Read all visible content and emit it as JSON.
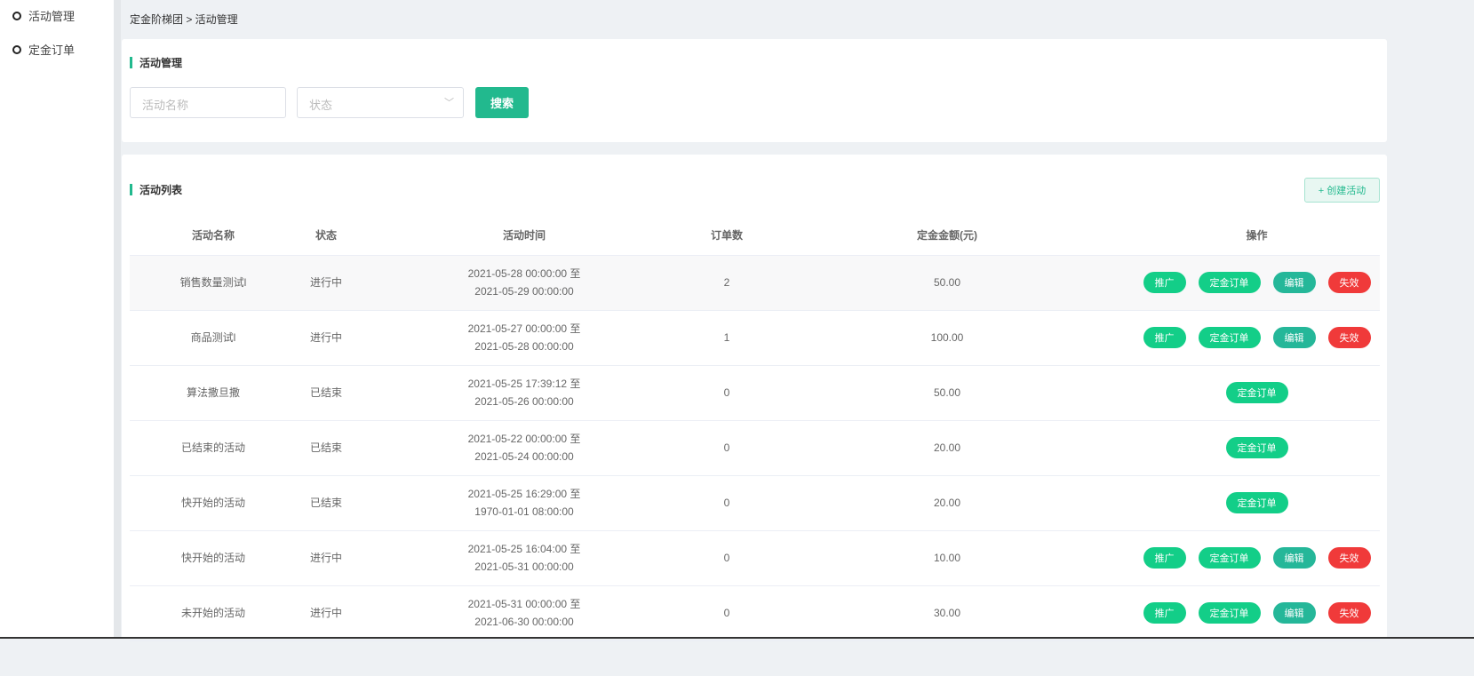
{
  "sidebar": {
    "items": [
      {
        "label": "活动管理"
      },
      {
        "label": "定金订单"
      }
    ]
  },
  "breadcrumb": "定金阶梯团 > 活动管理",
  "search_card": {
    "title": "活动管理",
    "name_placeholder": "活动名称",
    "status_placeholder": "状态",
    "search_label": "搜索"
  },
  "list_card": {
    "title": "活动列表",
    "create_label": "+ 创建活动",
    "columns": [
      "活动名称",
      "状态",
      "活动时间",
      "订单数",
      "定金金额(元)",
      "操作"
    ],
    "actions": {
      "promote": "推广",
      "orders": "定金订单",
      "edit": "编辑",
      "invalidate": "失效"
    },
    "rows": [
      {
        "name": "销售数量测试l",
        "status": "进行中",
        "start": "2021-05-28 00:00:00 至",
        "end": "2021-05-29 00:00:00",
        "orders": "2",
        "deposit": "50.00",
        "full_actions": true
      },
      {
        "name": "商品测试l",
        "status": "进行中",
        "start": "2021-05-27 00:00:00 至",
        "end": "2021-05-28 00:00:00",
        "orders": "1",
        "deposit": "100.00",
        "full_actions": true
      },
      {
        "name": "算法撒旦撒",
        "status": "已结束",
        "start": "2021-05-25 17:39:12 至",
        "end": "2021-05-26 00:00:00",
        "orders": "0",
        "deposit": "50.00",
        "full_actions": false
      },
      {
        "name": "已结束的活动",
        "status": "已结束",
        "start": "2021-05-22 00:00:00 至",
        "end": "2021-05-24 00:00:00",
        "orders": "0",
        "deposit": "20.00",
        "full_actions": false
      },
      {
        "name": "快开始的活动",
        "status": "已结束",
        "start": "2021-05-25 16:29:00 至",
        "end": "1970-01-01 08:00:00",
        "orders": "0",
        "deposit": "20.00",
        "full_actions": false
      },
      {
        "name": "快开始的活动",
        "status": "进行中",
        "start": "2021-05-25 16:04:00 至",
        "end": "2021-05-31 00:00:00",
        "orders": "0",
        "deposit": "10.00",
        "full_actions": true
      },
      {
        "name": "未开始的活动",
        "status": "进行中",
        "start": "2021-05-31 00:00:00 至",
        "end": "2021-06-30 00:00:00",
        "orders": "0",
        "deposit": "30.00",
        "full_actions": true
      }
    ]
  },
  "colors": {
    "accent": "#22b98e",
    "green": "#13ce88",
    "teal": "#25b799",
    "red": "#f03a3a"
  }
}
